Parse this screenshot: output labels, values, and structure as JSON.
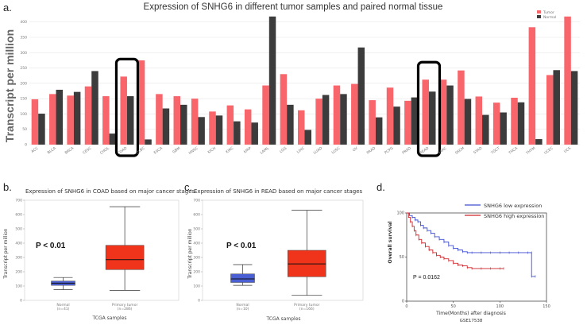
{
  "panel_labels": {
    "a": "a.",
    "b": "b.",
    "c": "c.",
    "d": "d."
  },
  "colors": {
    "tumor": "#f8666c",
    "normal": "#3c3c3c",
    "box_tumor": "#f0341b",
    "box_normal": "#4a5fd4",
    "km_low": "#3f4fd0",
    "km_high": "#d0262b",
    "highlight": "#000000"
  },
  "chart_data": [
    {
      "type": "bar",
      "title": "Expression of SNHG6 in different tumor samples and paired normal tissue",
      "ylabel": "Transcript per million",
      "xlabel": "",
      "ylim": [
        0,
        420
      ],
      "yticks": [
        "0",
        "50",
        "100",
        "150",
        "200",
        "250",
        "300",
        "350",
        "400"
      ],
      "legend": {
        "position": "top-right",
        "entries": [
          "Tumor",
          "Normal"
        ]
      },
      "categories": [
        "ACC",
        "BLCA",
        "BRCA",
        "CESC",
        "CHOL",
        "COAD",
        "DLBC",
        "ESCA",
        "GBM",
        "HNSC",
        "KICH",
        "KIRC",
        "KIRP",
        "LAML",
        "LGG",
        "LIHC",
        "LUAD",
        "LUSC",
        "OV",
        "PAAD",
        "PCPG",
        "PRAD",
        "READ",
        "SARC",
        "SKCM",
        "STAD",
        "TGCT",
        "THCA",
        "THYM",
        "UCEC",
        "UCS"
      ],
      "highlighted": [
        "COAD",
        "READ"
      ],
      "series": [
        {
          "name": "Tumor",
          "values": [
            148,
            165,
            160,
            190,
            158,
            222,
            275,
            165,
            158,
            150,
            108,
            128,
            115,
            193,
            230,
            112,
            150,
            193,
            198,
            145,
            186,
            143,
            212,
            212,
            242,
            157,
            137,
            153,
            383,
            227,
            418
          ]
        },
        {
          "name": "Normal",
          "values": [
            101,
            179,
            172,
            240,
            36,
            158,
            17,
            118,
            130,
            90,
            95,
            76,
            72,
            418,
            130,
            48,
            162,
            165,
            317,
            89,
            124,
            154,
            173,
            193,
            149,
            97,
            105,
            138,
            18,
            243,
            240
          ]
        }
      ]
    },
    {
      "type": "box",
      "title": "Expression of SNHG6 in COAD based on major cancer stages",
      "ylabel": "Transcript per million",
      "xlabel": "TCGA samples",
      "ylim": [
        0,
        700
      ],
      "yticks": [
        "0",
        "100",
        "200",
        "300",
        "400",
        "500",
        "600",
        "700"
      ],
      "annotation": "P < 0.01",
      "groups": [
        {
          "name": "Normal",
          "n": "(n=41)",
          "whisker_low": 75,
          "q1": 105,
          "median": 120,
          "q3": 135,
          "whisker_high": 160
        },
        {
          "name": "Primary tumor",
          "n": "(n=286)",
          "whisker_low": 70,
          "q1": 215,
          "median": 285,
          "q3": 385,
          "whisker_high": 655
        }
      ]
    },
    {
      "type": "box",
      "title": "Expression of SNHG6 in READ based on major cancer stages",
      "ylabel": "Transcript per million",
      "xlabel": "TCGA samples",
      "ylim": [
        0,
        700
      ],
      "yticks": [
        "0",
        "100",
        "200",
        "300",
        "400",
        "500",
        "600",
        "700"
      ],
      "annotation": "P < 0.01",
      "groups": [
        {
          "name": "Normal",
          "n": "(n=10)",
          "whisker_low": 105,
          "q1": 125,
          "median": 150,
          "q3": 185,
          "whisker_high": 250
        },
        {
          "name": "Primary tumor",
          "n": "(n=166)",
          "whisker_low": 35,
          "q1": 165,
          "median": 255,
          "q3": 350,
          "whisker_high": 630
        }
      ]
    },
    {
      "type": "line",
      "title": "",
      "ylabel": "Overall survival",
      "xlabel": "Time(Months) after diagnosis",
      "footnote": "GSE17538",
      "xlim": [
        0,
        150
      ],
      "ylim": [
        0,
        100
      ],
      "xticks": [
        "0",
        "50",
        "100",
        "150"
      ],
      "yticks": [
        "0",
        "50",
        "100"
      ],
      "annotation": "P = 0.0162",
      "legend": {
        "position": "top-right",
        "entries": [
          "SNHG6 low expression",
          "SNHG6 high expression"
        ]
      },
      "series": [
        {
          "name": "SNHG6 low expression",
          "x": [
            0,
            3,
            6,
            9,
            12,
            15,
            18,
            22,
            26,
            30,
            35,
            40,
            45,
            50,
            55,
            60,
            65,
            70,
            80,
            90,
            100,
            110,
            120,
            130,
            134,
            134,
            138
          ],
          "y": [
            100,
            97,
            95,
            92,
            90,
            86,
            83,
            80,
            77,
            73,
            70,
            67,
            63,
            60,
            58,
            56,
            55,
            55,
            55,
            55,
            55,
            55,
            55,
            55,
            55,
            28,
            28
          ]
        },
        {
          "name": "SNHG6 high expression",
          "x": [
            0,
            2,
            4,
            6,
            8,
            10,
            13,
            16,
            20,
            24,
            28,
            32,
            36,
            40,
            45,
            50,
            55,
            60,
            65,
            70,
            80,
            90,
            100,
            104
          ],
          "y": [
            100,
            95,
            90,
            85,
            80,
            75,
            70,
            66,
            62,
            58,
            55,
            52,
            50,
            48,
            46,
            43,
            41,
            40,
            38,
            37,
            37,
            37,
            37,
            37
          ]
        }
      ]
    }
  ]
}
